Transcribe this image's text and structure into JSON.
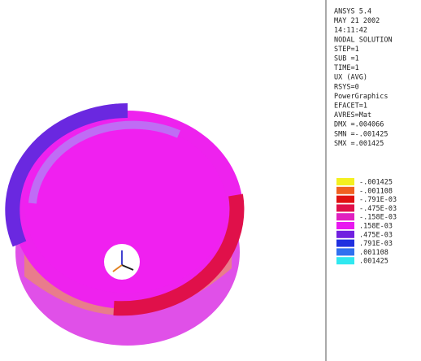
{
  "info_lines": [
    "ANSYS 5.4",
    "MAY 21 2002",
    "14:11:42",
    "NODAL SOLUTION",
    "STEP=1",
    "SUB =1",
    "TIME=1",
    "UX       (AVG)",
    "RSYS=0",
    "PowerGraphics",
    "EFACET=1",
    "AVRES=Mat",
    "DMX =.004066",
    "SMN =-.001425",
    "SMX =.001425"
  ],
  "legend": [
    {
      "label": "-.001425",
      "color": "#f4f020"
    },
    {
      "label": "-.001108",
      "color": "#f06020"
    },
    {
      "label": "-.791E-03",
      "color": "#e01010"
    },
    {
      "label": "-.475E-03",
      "color": "#e0104a"
    },
    {
      "label": "-.158E-03",
      "color": "#e020c0"
    },
    {
      "label": ".158E-03",
      "color": "#e818f0"
    },
    {
      "label": ".475E-03",
      "color": "#7020e0"
    },
    {
      "label": ".791E-03",
      "color": "#2030e0"
    },
    {
      "label": ".001108",
      "color": "#3070f0"
    },
    {
      "label": ".001425",
      "color": "#30e8f0"
    }
  ]
}
